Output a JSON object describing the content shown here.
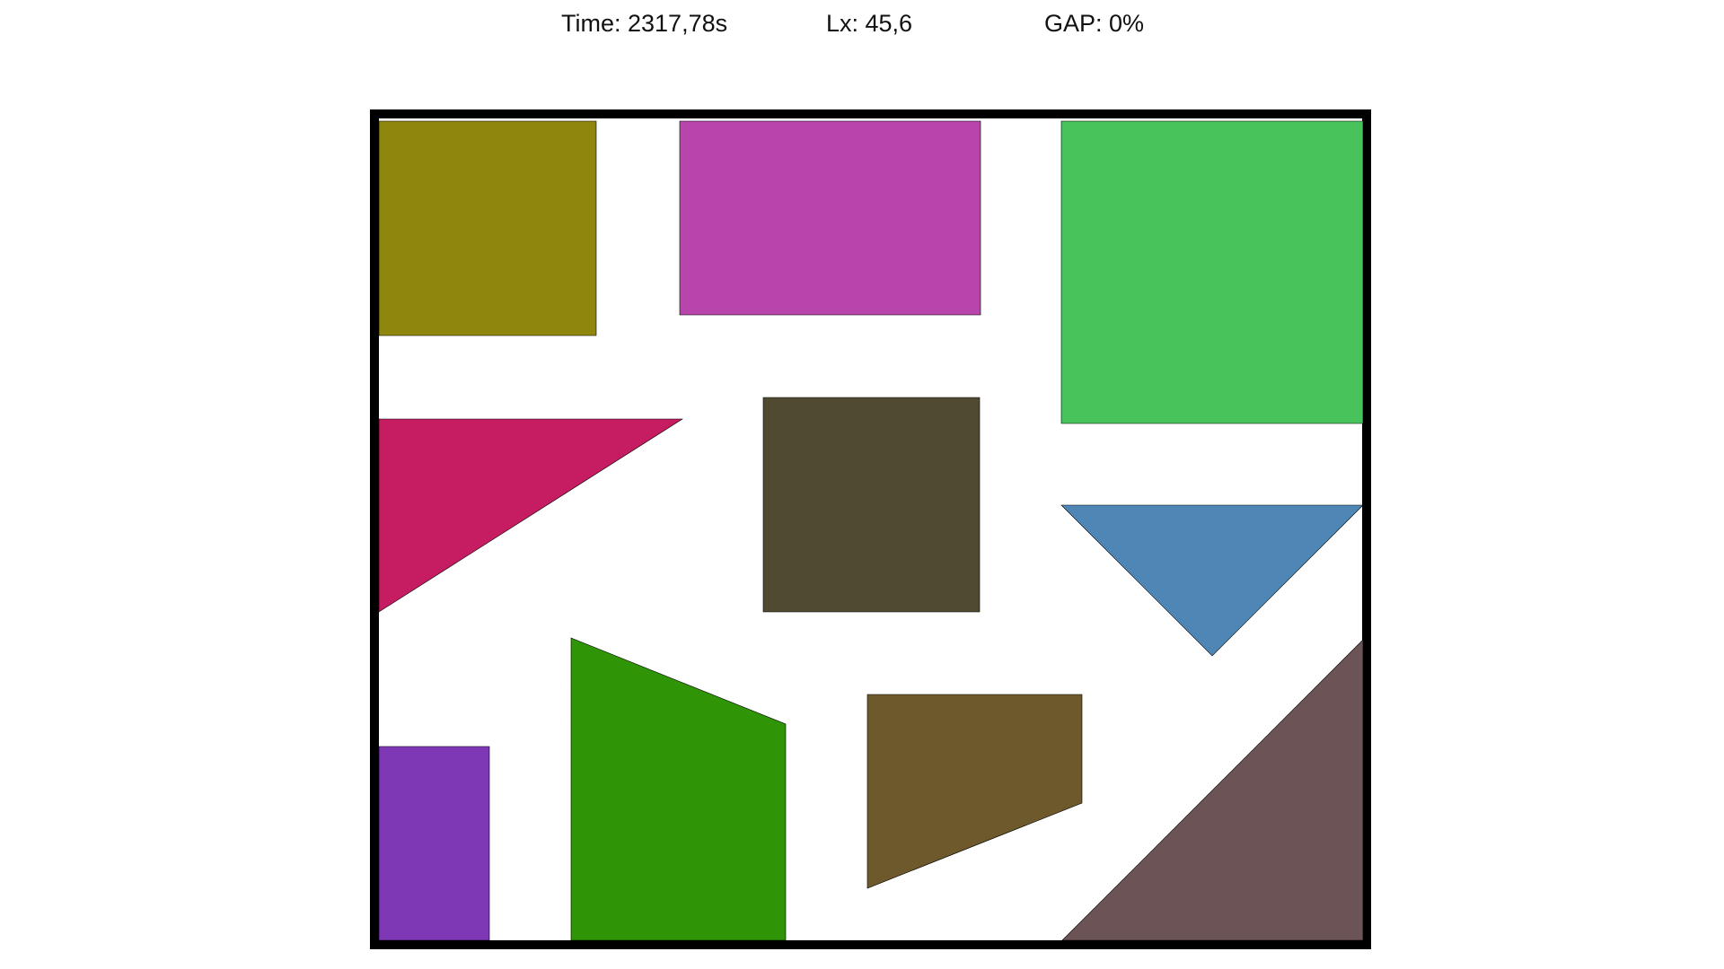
{
  "stats": {
    "time": "Time: 2317,78s",
    "lx": "Lx: 45,6",
    "gap": "GAP: 0%"
  },
  "colors": {
    "background": "#ffffff",
    "container_border": "#000000",
    "piece_outline": "#000000"
  },
  "pieces": [
    {
      "name": "olive-rectangle",
      "shape": "rectangle",
      "color": "#8f860d"
    },
    {
      "name": "magenta-rectangle",
      "shape": "rectangle",
      "color": "#b745ac"
    },
    {
      "name": "green-rectangle",
      "shape": "rectangle",
      "color": "#48c35b"
    },
    {
      "name": "crimson-triangle",
      "shape": "triangle",
      "color": "#c61c62"
    },
    {
      "name": "dark-olive-square",
      "shape": "square",
      "color": "#514a33"
    },
    {
      "name": "steel-blue-triangle",
      "shape": "triangle",
      "color": "#4e87b5"
    },
    {
      "name": "purple-rectangle",
      "shape": "rectangle",
      "color": "#7e37b5"
    },
    {
      "name": "dark-green-trapezoid",
      "shape": "trapezoid",
      "color": "#2f9507"
    },
    {
      "name": "brown-trapezoid",
      "shape": "trapezoid",
      "color": "#6d592b"
    },
    {
      "name": "mauve-triangle",
      "shape": "triangle",
      "color": "#6b5356"
    }
  ]
}
